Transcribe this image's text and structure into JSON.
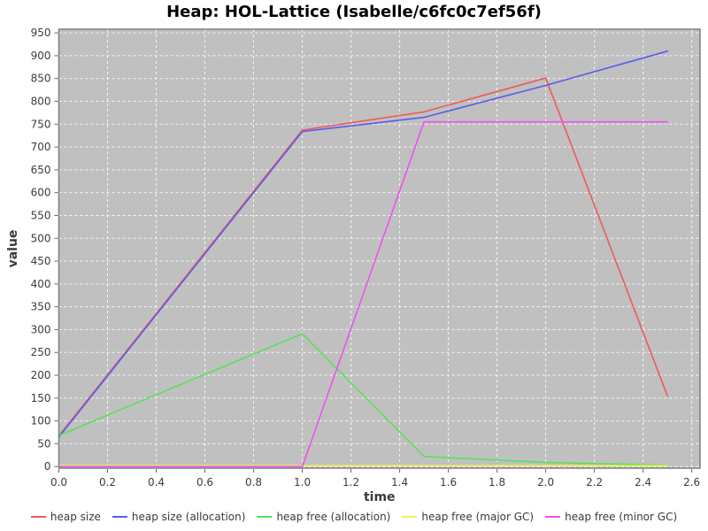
{
  "chart_data": {
    "type": "line",
    "title": "Heap: HOL-Lattice (Isabelle/c6fc0c7ef56f)",
    "xlabel": "time",
    "ylabel": "value",
    "grid": true,
    "legend_position": "bottom",
    "x_axis": {
      "min": 0,
      "max": 2.634,
      "ticks": [
        "0.0",
        "0.2",
        "0.4",
        "0.6",
        "0.8",
        "1.0",
        "1.2",
        "1.4",
        "1.6",
        "1.8",
        "2.0",
        "2.2",
        "2.4",
        "2.6"
      ]
    },
    "y_axis": {
      "min": -3.5,
      "max": 958,
      "ticks": [
        "0",
        "50",
        "100",
        "150",
        "200",
        "250",
        "300",
        "350",
        "400",
        "450",
        "500",
        "550",
        "600",
        "650",
        "700",
        "750",
        "800",
        "850",
        "900",
        "950"
      ]
    },
    "series": [
      {
        "name": "heap size",
        "color": "#f05a5a",
        "points": [
          [
            0,
            67
          ],
          [
            1.0,
            737
          ],
          [
            1.5,
            777
          ],
          [
            2.0,
            851
          ],
          [
            2.5,
            155
          ]
        ]
      },
      {
        "name": "heap size (allocation)",
        "color": "#5a5af0",
        "points": [
          [
            0,
            65
          ],
          [
            1.0,
            734
          ],
          [
            1.5,
            765
          ],
          [
            2.0,
            835
          ],
          [
            2.5,
            910
          ]
        ]
      },
      {
        "name": "heap free (allocation)",
        "color": "#58e058",
        "points": [
          [
            0,
            68
          ],
          [
            1.0,
            291
          ],
          [
            1.5,
            22
          ],
          [
            2.0,
            9
          ],
          [
            2.5,
            3
          ]
        ]
      },
      {
        "name": "heap free (major GC)",
        "color": "#f0f05a",
        "points": [
          [
            0,
            2
          ],
          [
            2.5,
            2
          ]
        ]
      },
      {
        "name": "heap free (minor GC)",
        "color": "#f050f0",
        "points": [
          [
            0,
            0
          ],
          [
            1.0,
            0
          ],
          [
            1.5,
            755
          ],
          [
            2.5,
            755
          ]
        ]
      }
    ],
    "colors": {
      "plot_background": "#c0c0c0",
      "grid_line": "#f7f7f7",
      "plot_border": "#7f7f7f",
      "tick_mark": "#666666",
      "tick_text": "#3c3c3c",
      "axis_label_text": "#3a3a3a",
      "title_text": "#000000"
    }
  }
}
